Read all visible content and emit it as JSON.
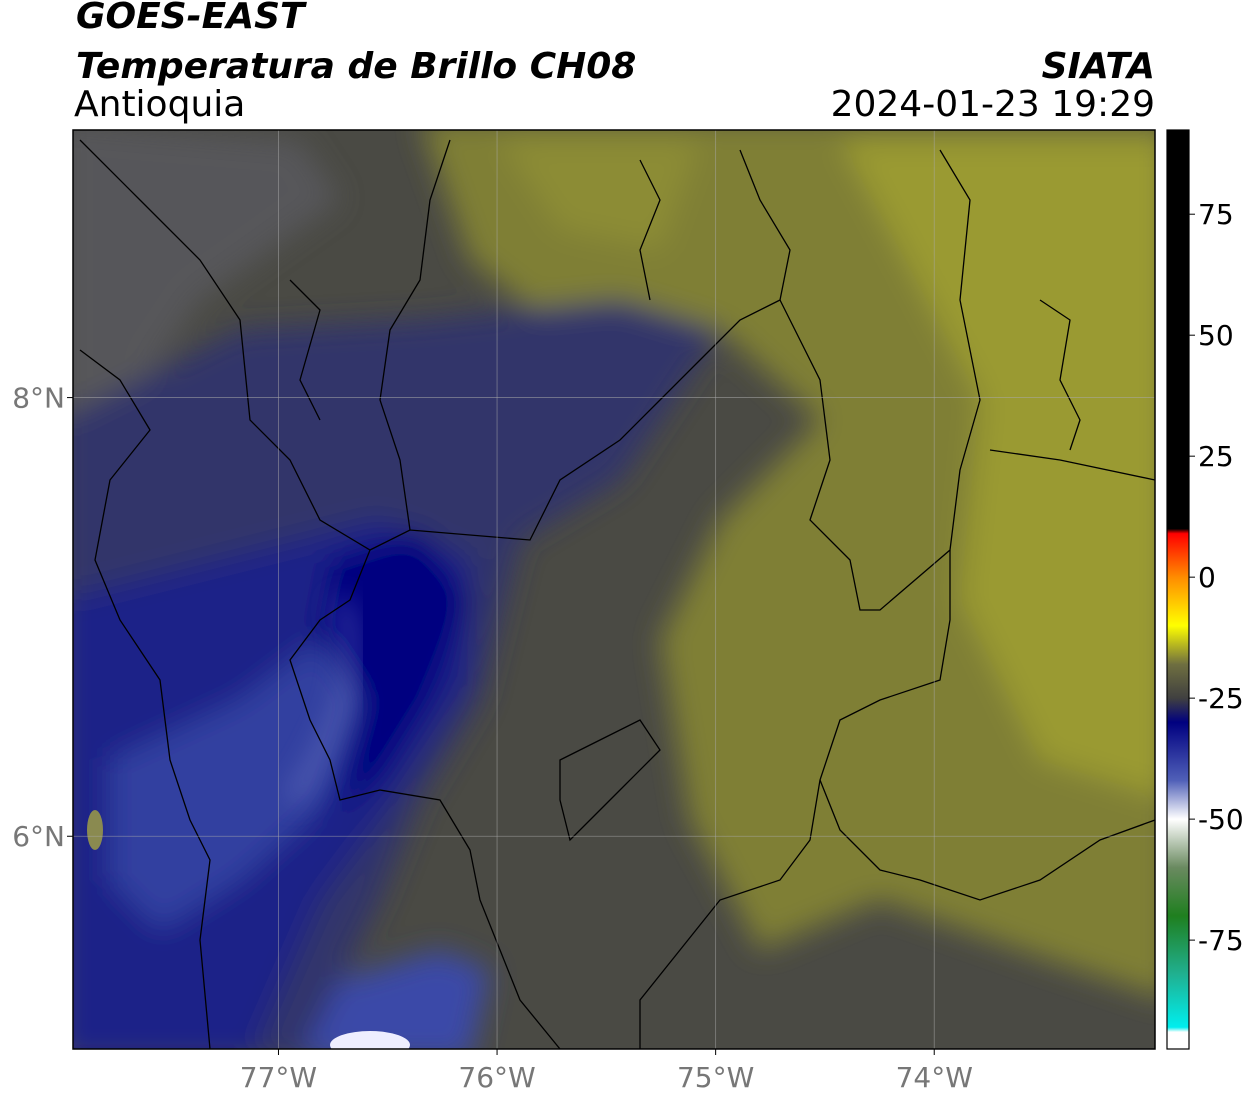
{
  "chart_data": {
    "type": "map",
    "title": "GOES-EAST",
    "subtitle": "Temperatura de Brillo CH08",
    "region": "Antioquia",
    "source": "SIATA",
    "timestamp": "2024-01-23 19:29",
    "xlim": [
      -77.94,
      -72.99
    ],
    "ylim": [
      5.03,
      9.22
    ],
    "xticks": [
      {
        "value": -77,
        "label": "77°W"
      },
      {
        "value": -76,
        "label": "76°W"
      },
      {
        "value": -75,
        "label": "75°W"
      },
      {
        "value": -74,
        "label": "74°W"
      }
    ],
    "yticks": [
      {
        "value": 6,
        "label": "6°N"
      },
      {
        "value": 8,
        "label": "8°N"
      }
    ],
    "grid": true,
    "colorbar": {
      "clim": [
        -97.5,
        92.4
      ],
      "ticks": [
        -75,
        -50,
        -25,
        0,
        25,
        50,
        75
      ],
      "colormap": [
        {
          "value": 92.4,
          "color": "#000000"
        },
        {
          "value": 10,
          "color": "#000000"
        },
        {
          "value": 9,
          "color": "#ff0000"
        },
        {
          "value": 0,
          "color": "#ff8c00"
        },
        {
          "value": -10,
          "color": "#ffff00"
        },
        {
          "value": -18,
          "color": "#6f6f40"
        },
        {
          "value": -25,
          "color": "#404040"
        },
        {
          "value": -30,
          "color": "#000080"
        },
        {
          "value": -42,
          "color": "#5060b8"
        },
        {
          "value": -50,
          "color": "#ffffff"
        },
        {
          "value": -60,
          "color": "#6a8a60"
        },
        {
          "value": -70,
          "color": "#1f7f1f"
        },
        {
          "value": -82,
          "color": "#20b090"
        },
        {
          "value": -93,
          "color": "#00eeee"
        },
        {
          "value": -94,
          "color": "#ffffff"
        },
        {
          "value": -97.5,
          "color": "#ffffff"
        }
      ]
    }
  }
}
